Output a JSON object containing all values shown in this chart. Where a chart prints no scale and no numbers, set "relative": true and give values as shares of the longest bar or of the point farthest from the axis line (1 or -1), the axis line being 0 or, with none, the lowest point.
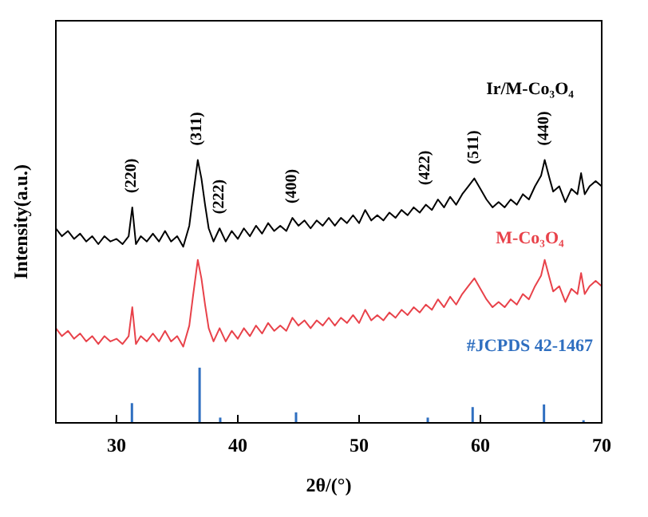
{
  "chart_data": {
    "type": "line",
    "relative": true,
    "xlabel": "2θ/(°)",
    "ylabel": "Intensity(a.u.)",
    "xlim": [
      25,
      70
    ],
    "xticks": [
      30,
      40,
      50,
      60,
      70
    ],
    "grid": false,
    "marker": "none",
    "line_style": "solid",
    "x": [
      25,
      25.5,
      26,
      26.5,
      27,
      27.5,
      28,
      28.5,
      29,
      29.5,
      30,
      30.5,
      31,
      31.3,
      31.6,
      32,
      32.5,
      33,
      33.5,
      34,
      34.5,
      35,
      35.5,
      36,
      36.3,
      36.7,
      37,
      37.3,
      37.6,
      38,
      38.5,
      39,
      39.5,
      40,
      40.5,
      41,
      41.5,
      42,
      42.5,
      43,
      43.5,
      44,
      44.5,
      45,
      45.5,
      46,
      46.5,
      47,
      47.5,
      48,
      48.5,
      49,
      49.5,
      50,
      50.5,
      51,
      51.5,
      52,
      52.5,
      53,
      53.5,
      54,
      54.5,
      55,
      55.5,
      56,
      56.5,
      57,
      57.5,
      58,
      58.5,
      59,
      59.5,
      60,
      60.5,
      61,
      61.5,
      62,
      62.5,
      63,
      63.5,
      64,
      64.5,
      65,
      65.3,
      65.7,
      66,
      66.5,
      67,
      67.5,
      68,
      68.3,
      68.6,
      69,
      69.5,
      70
    ],
    "series": [
      {
        "name": "Ir/M-Co₃O₄",
        "color": "#000000",
        "values": [
          0.74,
          0.71,
          0.73,
          0.7,
          0.72,
          0.69,
          0.71,
          0.68,
          0.71,
          0.69,
          0.7,
          0.68,
          0.71,
          0.82,
          0.68,
          0.71,
          0.69,
          0.72,
          0.69,
          0.73,
          0.69,
          0.71,
          0.67,
          0.75,
          0.86,
          1.0,
          0.93,
          0.83,
          0.74,
          0.69,
          0.74,
          0.69,
          0.73,
          0.7,
          0.74,
          0.71,
          0.75,
          0.72,
          0.76,
          0.73,
          0.75,
          0.73,
          0.78,
          0.75,
          0.77,
          0.74,
          0.77,
          0.75,
          0.78,
          0.75,
          0.78,
          0.76,
          0.79,
          0.76,
          0.81,
          0.77,
          0.79,
          0.77,
          0.8,
          0.78,
          0.81,
          0.79,
          0.82,
          0.8,
          0.83,
          0.81,
          0.85,
          0.82,
          0.86,
          0.83,
          0.87,
          0.9,
          0.93,
          0.89,
          0.85,
          0.82,
          0.84,
          0.82,
          0.85,
          0.83,
          0.87,
          0.85,
          0.9,
          0.94,
          1.0,
          0.93,
          0.88,
          0.9,
          0.84,
          0.89,
          0.87,
          0.95,
          0.87,
          0.9,
          0.92,
          0.9
        ]
      },
      {
        "name": "M-Co₃O₄",
        "color": "#e8424a",
        "values": [
          0.36,
          0.33,
          0.35,
          0.32,
          0.34,
          0.31,
          0.33,
          0.3,
          0.33,
          0.31,
          0.32,
          0.3,
          0.33,
          0.44,
          0.3,
          0.33,
          0.31,
          0.34,
          0.31,
          0.35,
          0.31,
          0.33,
          0.29,
          0.37,
          0.48,
          0.62,
          0.55,
          0.45,
          0.36,
          0.31,
          0.36,
          0.31,
          0.35,
          0.32,
          0.36,
          0.33,
          0.37,
          0.34,
          0.38,
          0.35,
          0.37,
          0.35,
          0.4,
          0.37,
          0.39,
          0.36,
          0.39,
          0.37,
          0.4,
          0.37,
          0.4,
          0.38,
          0.41,
          0.38,
          0.43,
          0.39,
          0.41,
          0.39,
          0.42,
          0.4,
          0.43,
          0.41,
          0.44,
          0.42,
          0.45,
          0.43,
          0.47,
          0.44,
          0.48,
          0.45,
          0.49,
          0.52,
          0.55,
          0.51,
          0.47,
          0.44,
          0.46,
          0.44,
          0.47,
          0.45,
          0.49,
          0.47,
          0.52,
          0.56,
          0.62,
          0.55,
          0.5,
          0.52,
          0.46,
          0.51,
          0.49,
          0.57,
          0.49,
          0.52,
          0.54,
          0.52
        ]
      },
      {
        "name": "#JCPDS 42-1467",
        "type": "bar",
        "color": "#2f6fc0",
        "x": [
          31.27,
          36.85,
          38.55,
          44.8,
          55.66,
          59.36,
          65.24,
          68.5
        ],
        "values": [
          0.075,
          0.21,
          0.02,
          0.04,
          0.02,
          0.06,
          0.07,
          0.01
        ]
      }
    ],
    "annotations": [
      {
        "text": "(220)",
        "x": 31.3,
        "y": 0.82
      },
      {
        "text": "(311)",
        "x": 36.7,
        "y": 1.0
      },
      {
        "text": "(222)",
        "x": 38.5,
        "y": 0.74
      },
      {
        "text": "(400)",
        "x": 44.5,
        "y": 0.78
      },
      {
        "text": "(422)",
        "x": 55.5,
        "y": 0.85
      },
      {
        "text": "(511)",
        "x": 59.5,
        "y": 0.93
      },
      {
        "text": "(440)",
        "x": 65.3,
        "y": 1.0
      }
    ]
  }
}
